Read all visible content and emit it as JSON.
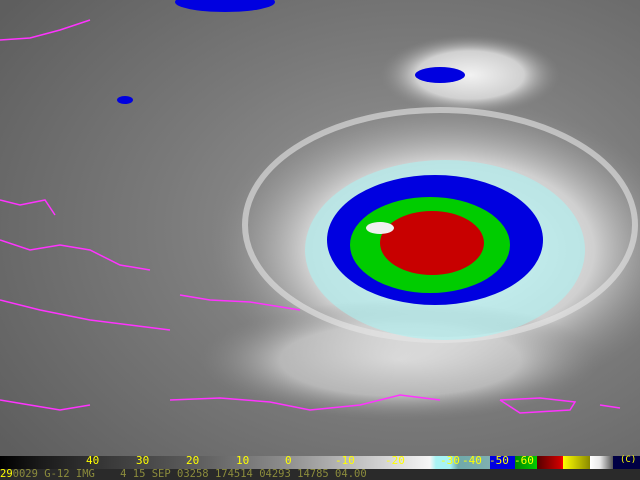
{
  "image": {
    "kind": "infrared satellite image of a hurricane with enhanced color table",
    "colors": {
      "coastline": "#ff33ff",
      "eye_core": "#cc0000",
      "band_green": "#00cc00",
      "band_blue": "#0000e0",
      "band_cyan": "#a8f4f4"
    }
  },
  "colorbar": {
    "labels": [
      "40",
      "30",
      "20",
      "10",
      "0",
      "-10",
      "-20",
      "-30",
      "-40",
      "-50",
      "-60"
    ],
    "unit": "(C)"
  },
  "infobar": {
    "frame": "29",
    "text": "0029 G-12 IMG    4 15 SEP 03258 174514 04293 14785 04.00"
  }
}
